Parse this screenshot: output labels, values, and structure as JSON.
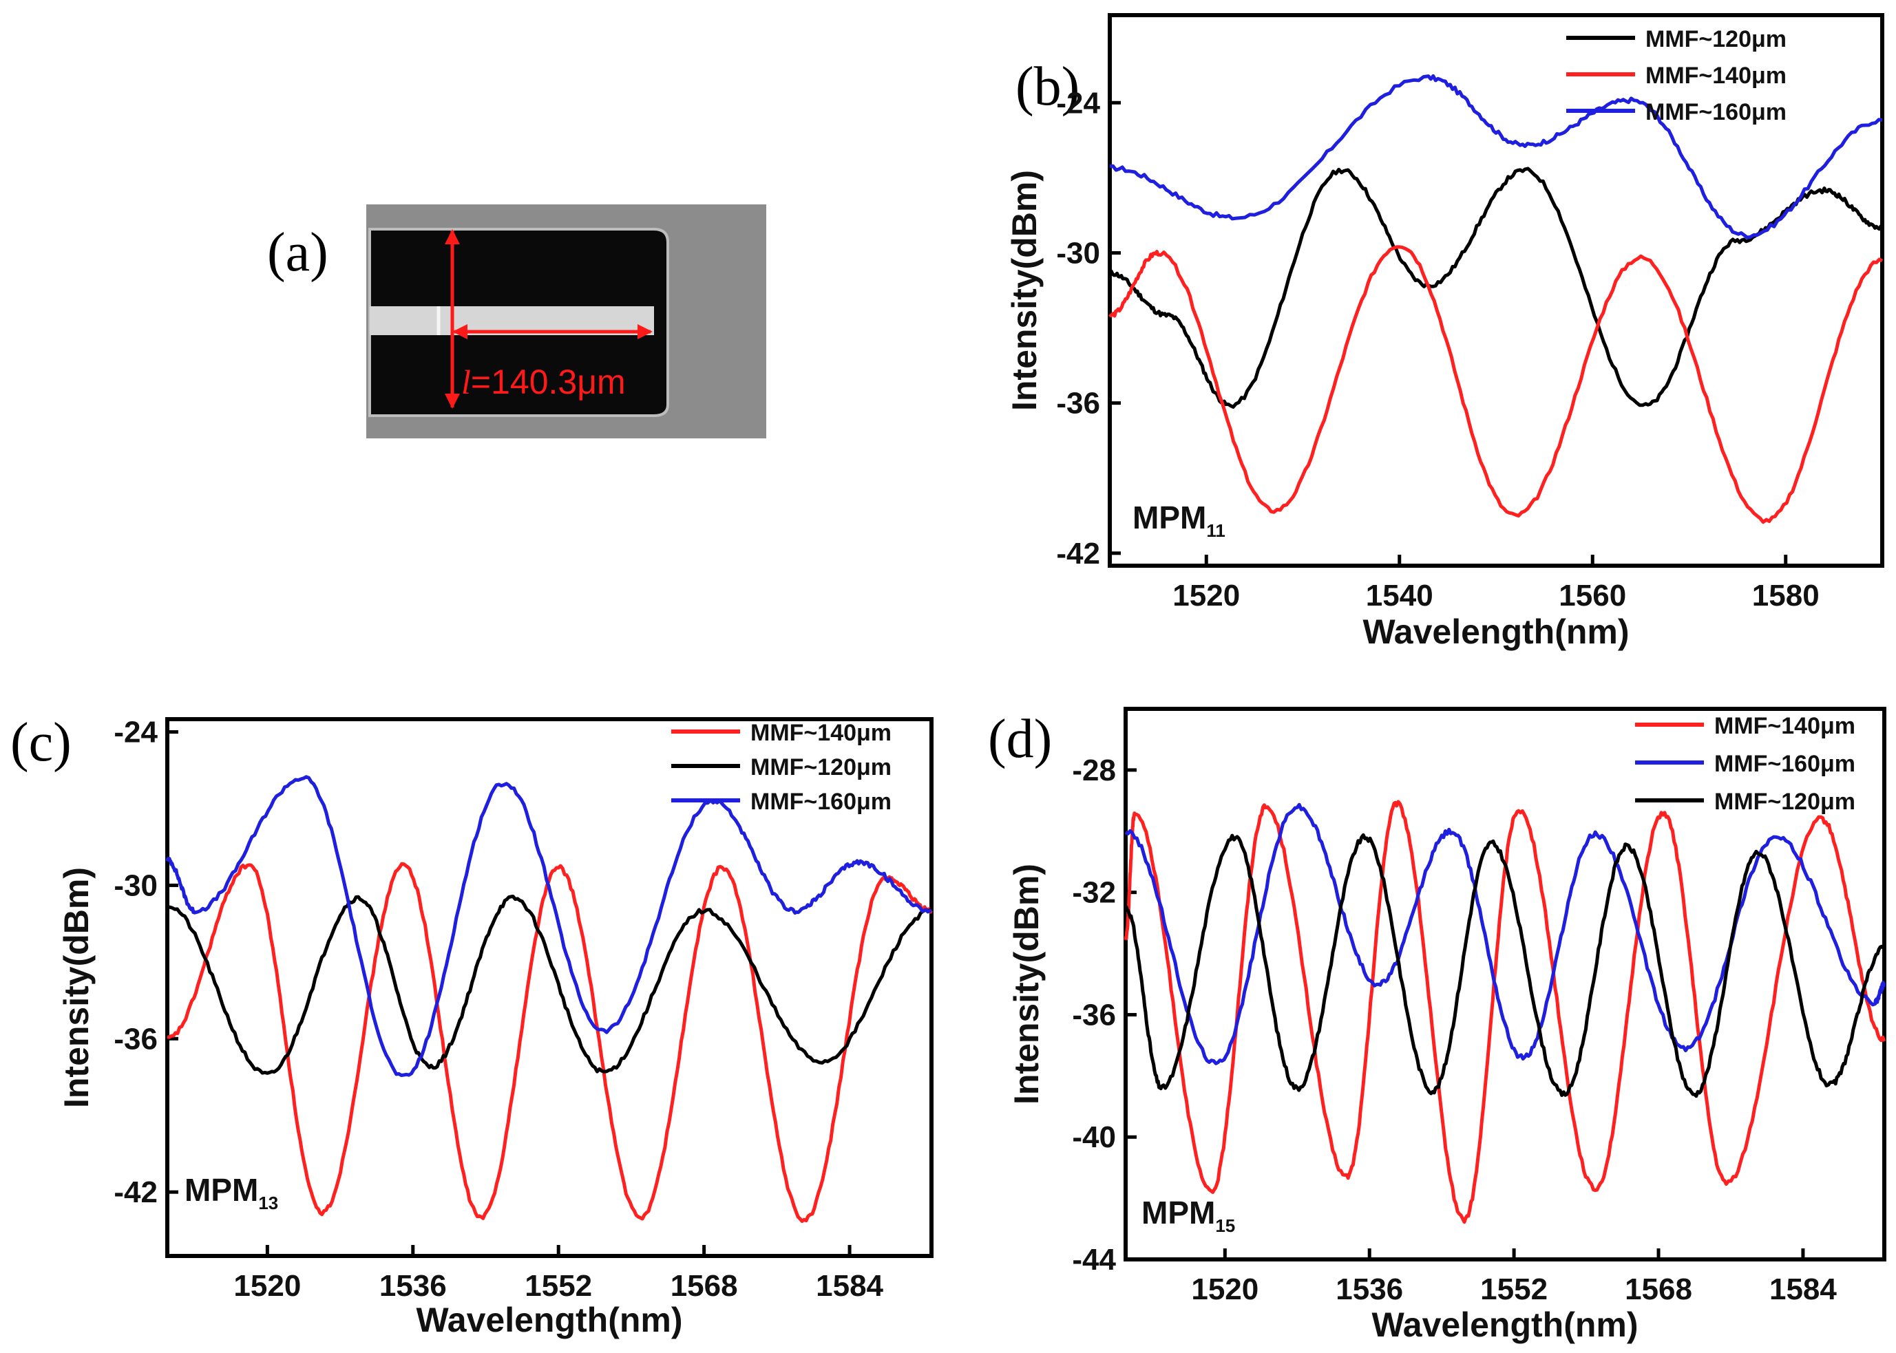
{
  "figure": {
    "panel_a": {
      "label": "(a)",
      "length_symbol": "l",
      "length_value": "=140.3μm"
    }
  },
  "chart_data": [
    {
      "id": "b",
      "type": "line",
      "panel_label": "(b)",
      "xlabel": "Wavelength(nm)",
      "ylabel": "Intensity(dBm)",
      "xlim": [
        1510,
        1590
      ],
      "ylim": [
        -42.5,
        -20.5
      ],
      "xticks": [
        1520,
        1540,
        1560,
        1580
      ],
      "yticks": [
        -24,
        -30,
        -36,
        -42
      ],
      "annotation": {
        "main": "MPM",
        "sub": "11"
      },
      "legend_position": "top-right",
      "series": [
        {
          "name": "MMF~120μm",
          "color": "#000000",
          "x": [
            1510,
            1516,
            1522.5,
            1534,
            1543,
            1553,
            1565.5,
            1575,
            1584,
            1590
          ],
          "y": [
            -30.8,
            -32.5,
            -36.1,
            -26.7,
            -31.3,
            -26.7,
            -36.1,
            -29.5,
            -27.5,
            -29.0
          ]
        },
        {
          "name": "MMF~140μm",
          "color": "#ff2020",
          "x": [
            1510,
            1515,
            1527,
            1540,
            1552,
            1565,
            1578,
            1590
          ],
          "y": [
            -32.5,
            -30.0,
            -40.3,
            -29.7,
            -40.5,
            -30.2,
            -40.7,
            -30.3
          ]
        },
        {
          "name": "MMF~160μm",
          "color": "#1f1fe0",
          "x": [
            1510,
            1523,
            1543,
            1553,
            1564,
            1576,
            1590
          ],
          "y": [
            -26.6,
            -28.6,
            -23.0,
            -25.7,
            -23.9,
            -29.3,
            -24.7
          ]
        }
      ]
    },
    {
      "id": "c",
      "type": "line",
      "panel_label": "(c)",
      "xlabel": "Wavelength(nm)",
      "ylabel": "Intensity(dBm)",
      "xlim": [
        1509,
        1593
      ],
      "ylim": [
        -44.5,
        -23.5
      ],
      "xticks": [
        1520,
        1536,
        1552,
        1568,
        1584
      ],
      "yticks": [
        -24,
        -30,
        -36,
        -42
      ],
      "annotation": {
        "main": "MPM",
        "sub": "13"
      },
      "legend_position": "top-right",
      "series": [
        {
          "name": "MMF~140μm",
          "color": "#ff2020",
          "x": [
            1509,
            1518,
            1526,
            1535,
            1543.5,
            1552,
            1561,
            1570,
            1579,
            1588,
            1593
          ],
          "y": [
            -36.0,
            -29.2,
            -42.8,
            -29.2,
            -43.0,
            -29.3,
            -43.0,
            -29.3,
            -43.1,
            -29.7,
            -31.0
          ]
        },
        {
          "name": "MMF~120μm",
          "color": "#000000",
          "x": [
            1509,
            1520,
            1530,
            1538,
            1547,
            1557,
            1568,
            1581,
            1593
          ],
          "y": [
            -30.8,
            -37.4,
            -30.5,
            -37.1,
            -30.5,
            -37.3,
            -31.0,
            -36.9,
            -31.0
          ]
        },
        {
          "name": "MMF~160μm",
          "color": "#1f1fe0",
          "x": [
            1509,
            1512,
            1524,
            1535,
            1546,
            1557,
            1569,
            1578,
            1585,
            1593
          ],
          "y": [
            -29.0,
            -31.0,
            -25.8,
            -37.5,
            -26.0,
            -35.7,
            -26.7,
            -31.0,
            -29.1,
            -31.0
          ]
        }
      ]
    },
    {
      "id": "d",
      "type": "line",
      "panel_label": "(d)",
      "xlabel": "Wavelength(nm)",
      "ylabel": "Intensity(dBm)",
      "xlim": [
        1509,
        1593
      ],
      "ylim": [
        -44,
        -26
      ],
      "xticks": [
        1520,
        1536,
        1552,
        1568,
        1584
      ],
      "yticks": [
        -28,
        -32,
        -36,
        -40,
        -44
      ],
      "annotation": {
        "main": "MPM",
        "sub": "15"
      },
      "legend_position": "top-right",
      "series": [
        {
          "name": "MMF~140μm",
          "color": "#ff2020",
          "x": [
            1509,
            1510,
            1518.5,
            1524.5,
            1533.5,
            1539,
            1546.5,
            1552.5,
            1561,
            1568.5,
            1575.5,
            1586,
            1593
          ],
          "y": [
            -33.5,
            -29.4,
            -41.8,
            -29.2,
            -41.3,
            -29.1,
            -42.7,
            -29.3,
            -41.7,
            -29.4,
            -41.5,
            -29.6,
            -36.8
          ]
        },
        {
          "name": "MMF~160μm",
          "color": "#1f1fe0",
          "x": [
            1509,
            1519,
            1528,
            1537,
            1545,
            1553,
            1561,
            1571,
            1581,
            1592,
            1593
          ],
          "y": [
            -30.0,
            -37.6,
            -29.2,
            -35.0,
            -30.0,
            -37.4,
            -30.1,
            -37.1,
            -30.2,
            -35.6,
            -35.0
          ]
        },
        {
          "name": "MMF~120μm",
          "color": "#000000",
          "x": [
            1509,
            1513,
            1521,
            1528,
            1535.5,
            1543,
            1549.5,
            1557.5,
            1564.5,
            1572,
            1579,
            1587,
            1593
          ],
          "y": [
            -32.5,
            -38.4,
            -30.2,
            -38.4,
            -30.2,
            -38.5,
            -30.4,
            -38.6,
            -30.5,
            -38.6,
            -30.7,
            -38.3,
            -33.8
          ]
        }
      ]
    }
  ]
}
